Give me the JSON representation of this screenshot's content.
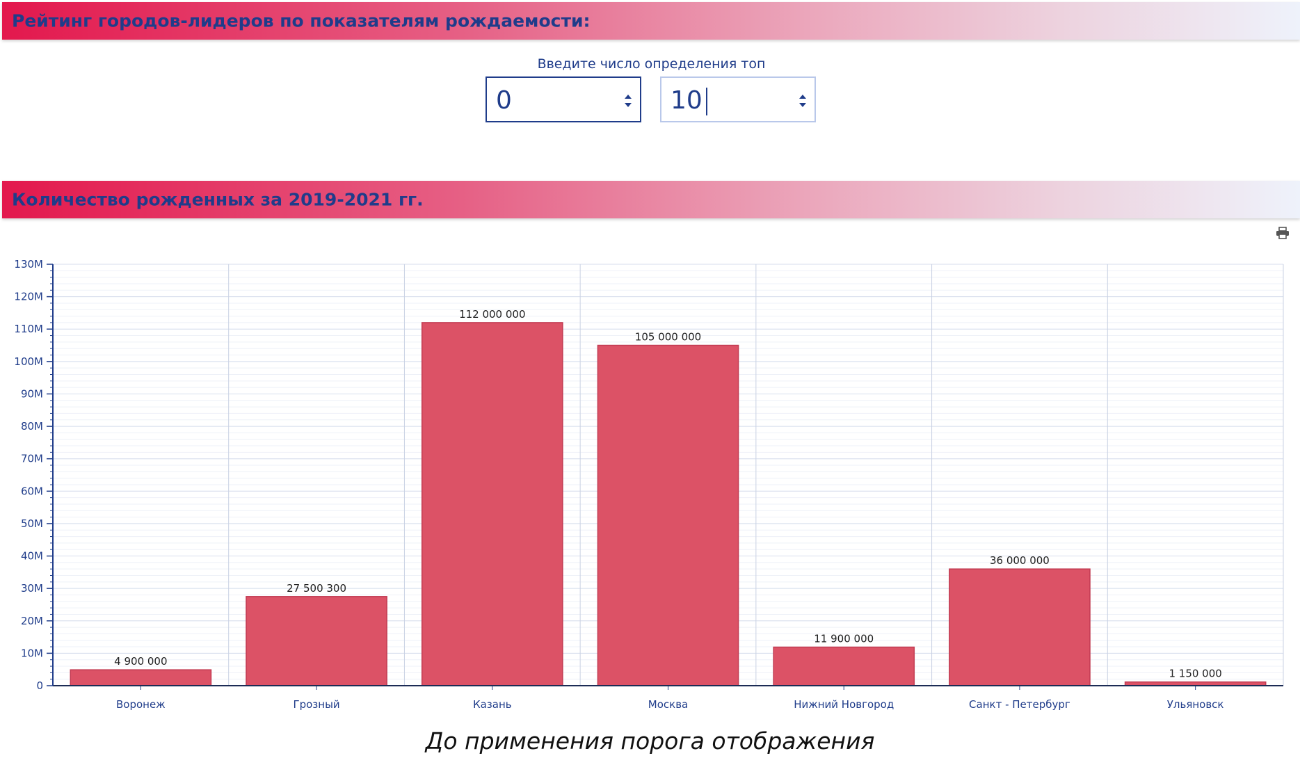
{
  "header": {
    "title": "Рейтинг городов-лидеров по показателям рождаемости:"
  },
  "top_input": {
    "label": "Введите число определения топ",
    "from_value": "0",
    "to_value": "10"
  },
  "chart_section": {
    "title": "Количество рожденных за 2019-2021 гг."
  },
  "caption": "До применения порога отображения",
  "icons": {
    "spinner": "spinner-arrows-icon",
    "print": "printer-icon"
  },
  "colors": {
    "bar": "#dc5266",
    "bar_border": "#c23b52",
    "axis": "#1f3c8a",
    "label": "#1f3c8a"
  },
  "chart_data": {
    "type": "bar",
    "categories": [
      "Воронеж",
      "Грозный",
      "Казань",
      "Москва",
      "Нижний Новгород",
      "Санкт - Петербург",
      "Ульяновск"
    ],
    "values": [
      4900000,
      27500300,
      112000000,
      105000000,
      11900000,
      36000000,
      1150000
    ],
    "value_labels": [
      "4 900 000",
      "27 500 300",
      "112 000 000",
      "105 000 000",
      "11 900 000",
      "36 000 000",
      "1 150 000"
    ],
    "ylim": [
      0,
      130000000
    ],
    "yticks": [
      0,
      10000000,
      20000000,
      30000000,
      40000000,
      50000000,
      60000000,
      70000000,
      80000000,
      90000000,
      100000000,
      110000000,
      120000000,
      130000000
    ],
    "ytick_labels": [
      "0",
      "10M",
      "20M",
      "30M",
      "40M",
      "50M",
      "60M",
      "70M",
      "80M",
      "90M",
      "100M",
      "110M",
      "120M",
      "130M"
    ],
    "grid": true,
    "legend": "none"
  }
}
